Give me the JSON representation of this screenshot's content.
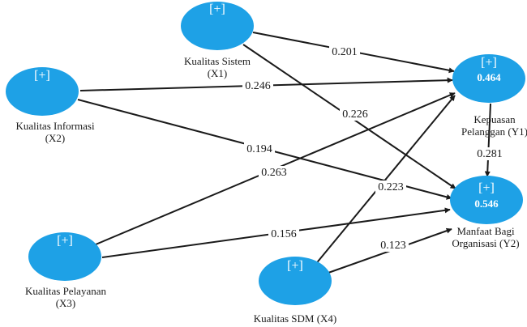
{
  "nodes": {
    "x1": {
      "plus": "[+]",
      "label_lines": [
        "Kualitas Sistem",
        "(X1)"
      ],
      "color": "#1ea1e6"
    },
    "x2": {
      "plus": "[+]",
      "label_lines": [
        "Kualitas Informasi",
        "(X2)"
      ],
      "color": "#1ea1e6"
    },
    "x3": {
      "plus": "[+]",
      "label_lines": [
        "Kualitas Pelayanan",
        "(X3)"
      ],
      "color": "#1ea1e6"
    },
    "x4": {
      "plus": "[+]",
      "label_lines": [
        "Kualitas SDM (X4)"
      ],
      "color": "#1ea1e6"
    },
    "y1": {
      "plus": "[+]",
      "r2": "0.464",
      "label_lines": [
        "Kepuasan",
        "Pelanggan (Y1)"
      ],
      "color": "#1ea1e6"
    },
    "y2": {
      "plus": "[+]",
      "r2": "0.546",
      "label_lines": [
        "Manfaat Bagi",
        "Organisasi (Y2)"
      ],
      "color": "#1ea1e6"
    }
  },
  "paths": [
    {
      "id": "x1-y1",
      "from": "x1",
      "to": "y1",
      "coef": "0.201"
    },
    {
      "id": "x2-y1",
      "from": "x2",
      "to": "y1",
      "coef": "0.246"
    },
    {
      "id": "x1-y2",
      "from": "x1",
      "to": "y2",
      "coef": "0.226"
    },
    {
      "id": "x2-y2",
      "from": "x2",
      "to": "y2",
      "coef": "0.194"
    },
    {
      "id": "x3-y1",
      "from": "x3",
      "to": "y1",
      "coef": "0.263"
    },
    {
      "id": "x4-y1",
      "from": "x4",
      "to": "y1",
      "coef": "0.223"
    },
    {
      "id": "x3-y2",
      "from": "x3",
      "to": "y2",
      "coef": "0.156"
    },
    {
      "id": "x4-y2",
      "from": "x4",
      "to": "y2",
      "coef": "0.123"
    },
    {
      "id": "y1-y2",
      "from": "y1",
      "to": "y2",
      "coef": "0.281"
    }
  ]
}
